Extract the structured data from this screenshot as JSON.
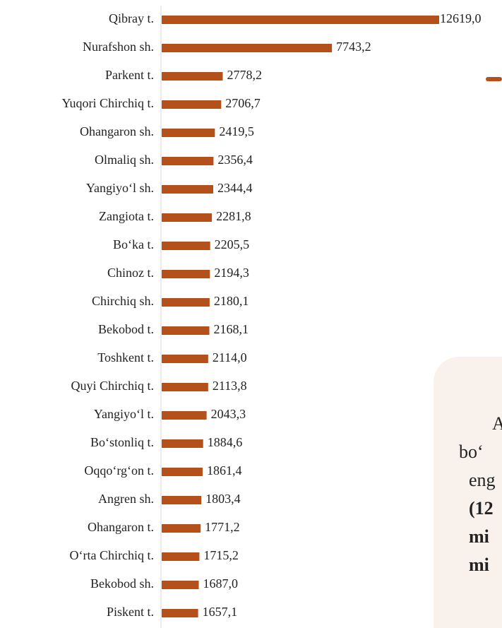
{
  "chart_data": {
    "type": "bar",
    "orientation": "horizontal",
    "color": "#b5501a",
    "categories": [
      "Qibray t.",
      "Nurafshon sh.",
      "Parkent t.",
      "Yuqori Chirchiq t.",
      "Ohangaron sh.",
      "Olmaliq sh.",
      "Yangiyo‘l sh.",
      "Zangiota t.",
      "Bo‘ka t.",
      "Chinoz t.",
      "Chirchiq sh.",
      "Bekobod t.",
      "Toshkent t.",
      "Quyi Chirchiq t.",
      "Yangiyo‘l t.",
      "Bo‘stonliq t.",
      "Oqqo‘rg‘on t.",
      "Angren sh.",
      "Ohangaron t.",
      "O‘rta Chirchiq t.",
      "Bekobod sh.",
      "Piskent t."
    ],
    "values": [
      12619.0,
      7743.2,
      2778.2,
      2706.7,
      2419.5,
      2356.4,
      2344.4,
      2281.8,
      2205.5,
      2194.3,
      2180.1,
      2168.1,
      2114.0,
      2113.8,
      2043.3,
      1884.6,
      1861.4,
      1803.4,
      1771.2,
      1715.2,
      1687.0,
      1657.1
    ],
    "value_labels": [
      "12619,0",
      "7743,2",
      "2778,2",
      "2706,7",
      "2419,5",
      "2356,4",
      "2344,4",
      "2281,8",
      "2205,5",
      "2194,3",
      "2180,1",
      "2168,1",
      "2114,0",
      "2113,8",
      "2043,3",
      "1884,6",
      "1861,4",
      "1803,4",
      "1771,2",
      "1715,2",
      "1687,0",
      "1657,1"
    ],
    "annotation_lines": [
      "A",
      "bo‘",
      "eng",
      "(12",
      "mi",
      "mi"
    ]
  }
}
